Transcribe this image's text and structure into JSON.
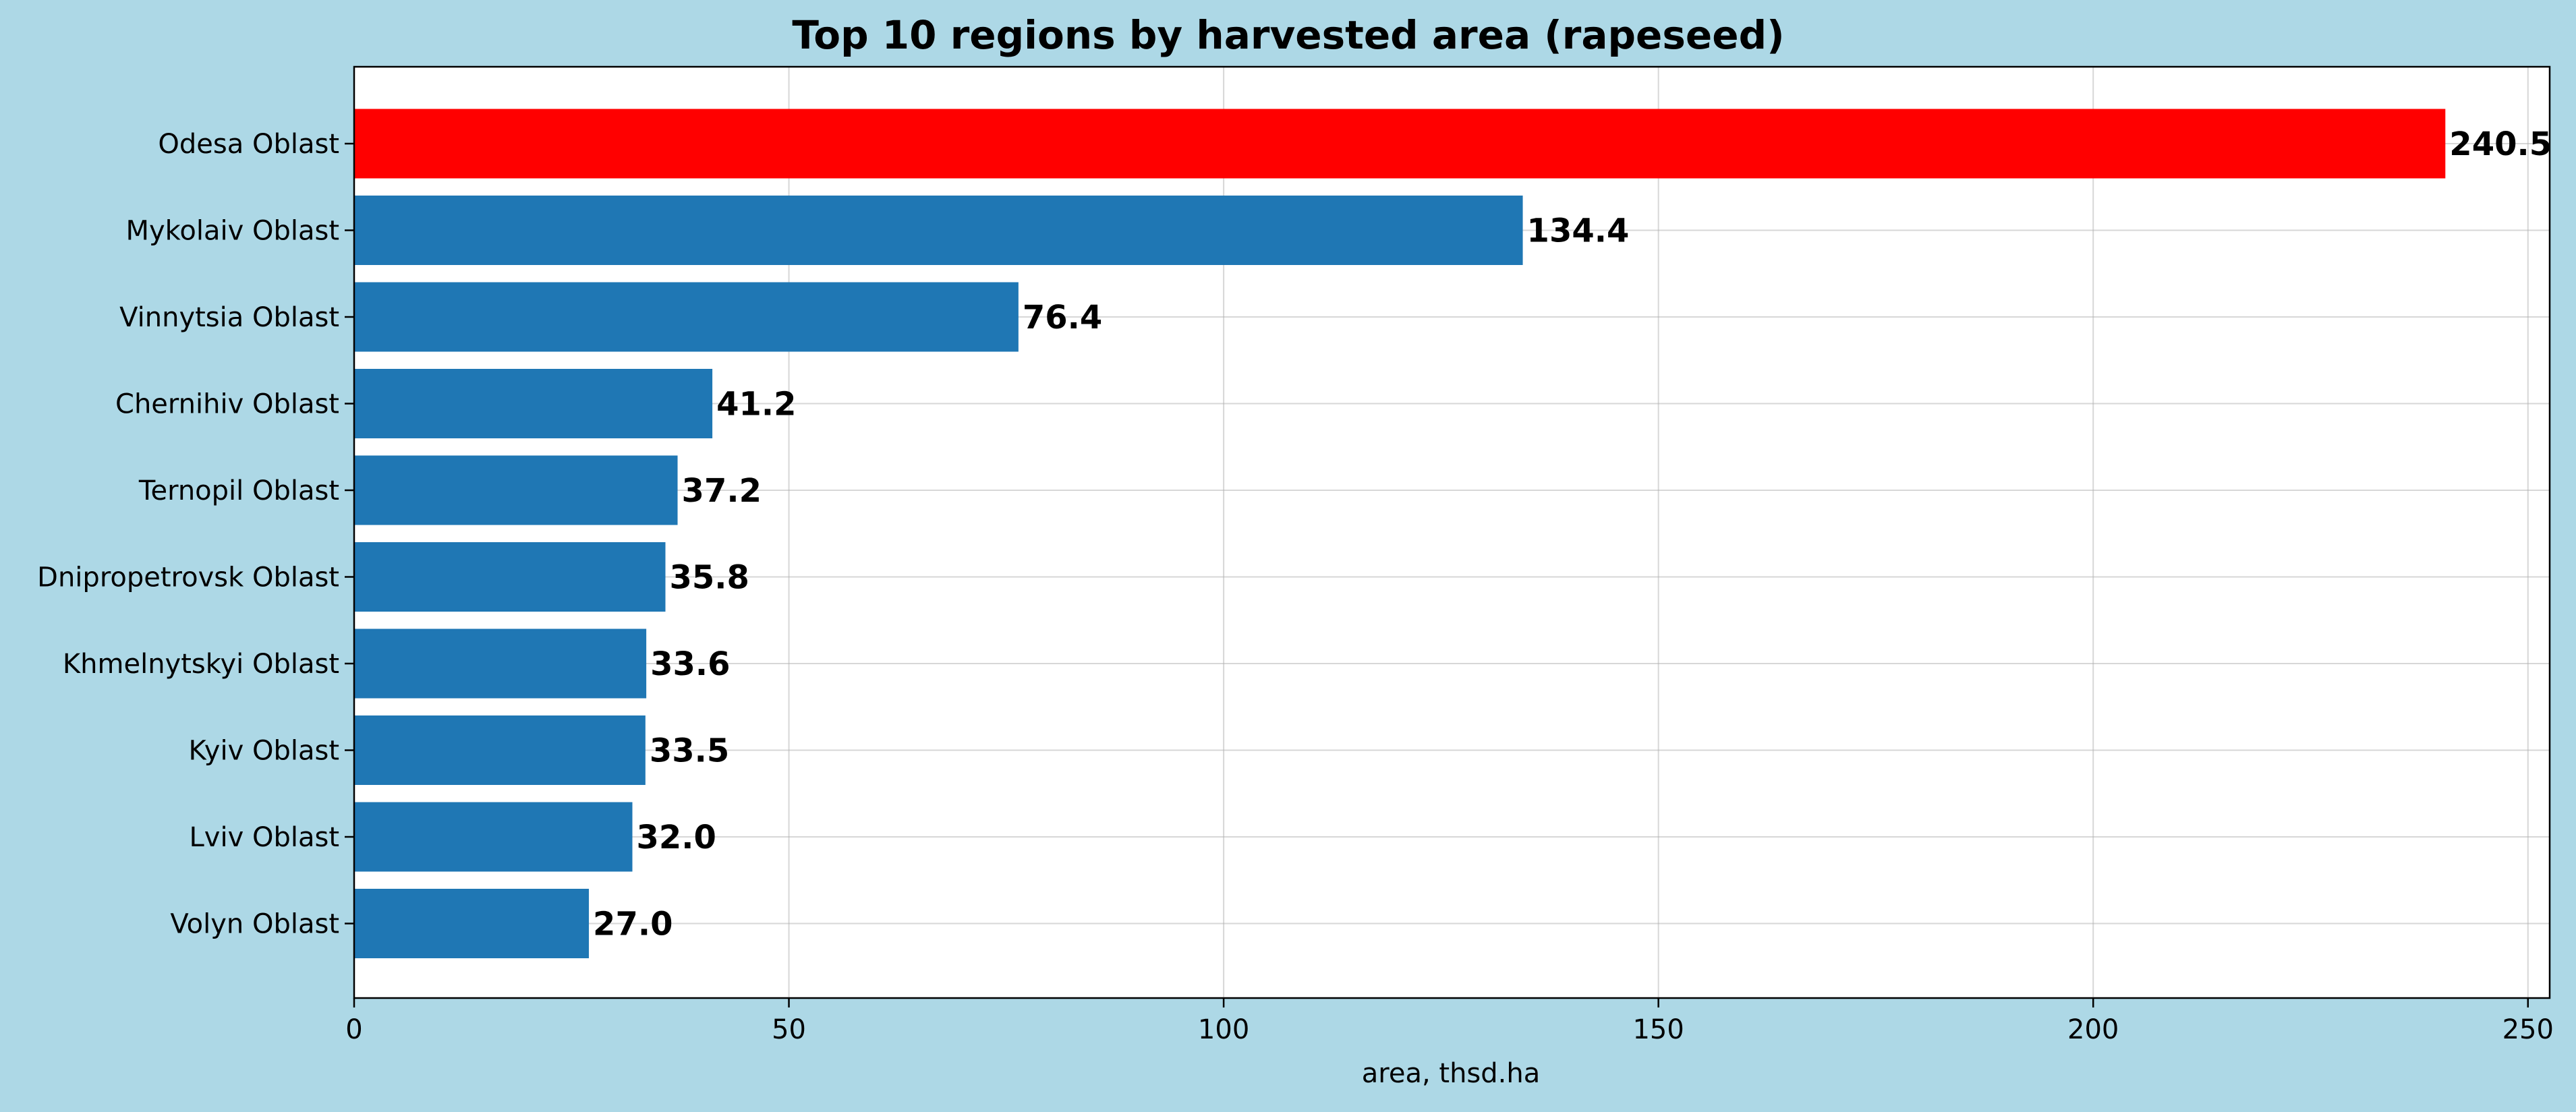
{
  "chart_data": {
    "type": "bar",
    "orientation": "horizontal",
    "title": "Top 10 regions by harvested area (rapeseed)",
    "xlabel": "area, thsd.ha",
    "ylabel": "",
    "categories": [
      "Odesa Oblast",
      "Mykolaiv Oblast",
      "Vinnytsia Oblast",
      "Chernihiv Oblast",
      "Ternopil Oblast",
      "Dnipropetrovsk Oblast",
      "Khmelnytskyi Oblast",
      "Kyiv Oblast",
      "Lviv Oblast",
      "Volyn Oblast"
    ],
    "values": [
      240.5,
      134.4,
      76.4,
      41.2,
      37.2,
      35.8,
      33.6,
      33.5,
      32.0,
      27.0
    ],
    "data_labels": [
      "240.5",
      "134.4",
      "76.4",
      "41.2",
      "37.2",
      "35.8",
      "33.6",
      "33.5",
      "32.0",
      "27.0"
    ],
    "xlim": [
      0,
      252.5
    ],
    "xticks": [
      0,
      50,
      100,
      150,
      200,
      250
    ],
    "grid": true,
    "bar_color": "#1f77b4",
    "highlight_color": "#ff0000",
    "highlight_index": 0,
    "background_color": "#add8e6",
    "plot_background_color": "#ffffff"
  }
}
